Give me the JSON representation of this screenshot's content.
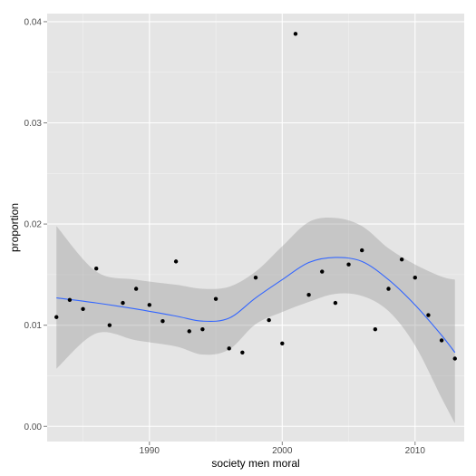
{
  "chart_data": {
    "type": "scatter",
    "xlabel": "society men moral",
    "ylabel": "proportion",
    "xlim": [
      1982.3,
      2013.7
    ],
    "ylim": [
      -0.0015,
      0.0408
    ],
    "x_ticks": [
      1990,
      2000,
      2010
    ],
    "x_tick_labels": [
      "1990",
      "2000",
      "2010"
    ],
    "y_ticks": [
      0.0,
      0.01,
      0.02,
      0.03,
      0.04
    ],
    "y_tick_labels": [
      "0.00",
      "0.01",
      "0.02",
      "0.03",
      "0.04"
    ],
    "x_minor_ticks": [
      1985,
      1995,
      2005
    ],
    "y_minor_ticks": [
      0.005,
      0.015,
      0.025,
      0.035
    ],
    "grid": true,
    "points": [
      {
        "x": 1983,
        "y": 0.0108
      },
      {
        "x": 1984,
        "y": 0.0125
      },
      {
        "x": 1985,
        "y": 0.0116
      },
      {
        "x": 1986,
        "y": 0.0156
      },
      {
        "x": 1987,
        "y": 0.01
      },
      {
        "x": 1988,
        "y": 0.0122
      },
      {
        "x": 1989,
        "y": 0.0136
      },
      {
        "x": 1990,
        "y": 0.012
      },
      {
        "x": 1991,
        "y": 0.0104
      },
      {
        "x": 1992,
        "y": 0.0163
      },
      {
        "x": 1993,
        "y": 0.0094
      },
      {
        "x": 1994,
        "y": 0.0096
      },
      {
        "x": 1995,
        "y": 0.0126
      },
      {
        "x": 1996,
        "y": 0.0077
      },
      {
        "x": 1997,
        "y": 0.0073
      },
      {
        "x": 1998,
        "y": 0.0147
      },
      {
        "x": 1999,
        "y": 0.0105
      },
      {
        "x": 2000,
        "y": 0.0082
      },
      {
        "x": 2001,
        "y": 0.0388
      },
      {
        "x": 2002,
        "y": 0.013
      },
      {
        "x": 2003,
        "y": 0.0153
      },
      {
        "x": 2004,
        "y": 0.0122
      },
      {
        "x": 2005,
        "y": 0.016
      },
      {
        "x": 2006,
        "y": 0.0174
      },
      {
        "x": 2007,
        "y": 0.0096
      },
      {
        "x": 2008,
        "y": 0.0136
      },
      {
        "x": 2009,
        "y": 0.0165
      },
      {
        "x": 2010,
        "y": 0.0147
      },
      {
        "x": 2011,
        "y": 0.011
      },
      {
        "x": 2012,
        "y": 0.0085
      },
      {
        "x": 2013,
        "y": 0.0067
      }
    ],
    "smooth": {
      "x": [
        1983,
        1986,
        1989,
        1992,
        1994,
        1996,
        1998,
        2000,
        2002,
        2004,
        2006,
        2008,
        2010,
        2012,
        2013
      ],
      "y": [
        0.0127,
        0.0122,
        0.0116,
        0.0109,
        0.0104,
        0.0107,
        0.0127,
        0.0145,
        0.0162,
        0.0167,
        0.0163,
        0.0145,
        0.012,
        0.009,
        0.0073
      ],
      "lower": [
        0.0057,
        0.0092,
        0.0085,
        0.0079,
        0.0071,
        0.0076,
        0.0101,
        0.0113,
        0.0123,
        0.0131,
        0.0129,
        0.0114,
        0.008,
        0.0028,
        0.0003
      ],
      "upper": [
        0.0198,
        0.0153,
        0.0145,
        0.014,
        0.0136,
        0.0138,
        0.0153,
        0.0178,
        0.0202,
        0.0206,
        0.0198,
        0.0176,
        0.016,
        0.0148,
        0.0145
      ]
    },
    "colors": {
      "panel_background": "#e5e5e5",
      "grid_major": "#ffffff",
      "grid_minor": "#f2f2f2",
      "point": "#000000",
      "smooth_line": "#3366ff",
      "ribbon": "#999999",
      "tick_label": "#4d4d4d"
    }
  }
}
